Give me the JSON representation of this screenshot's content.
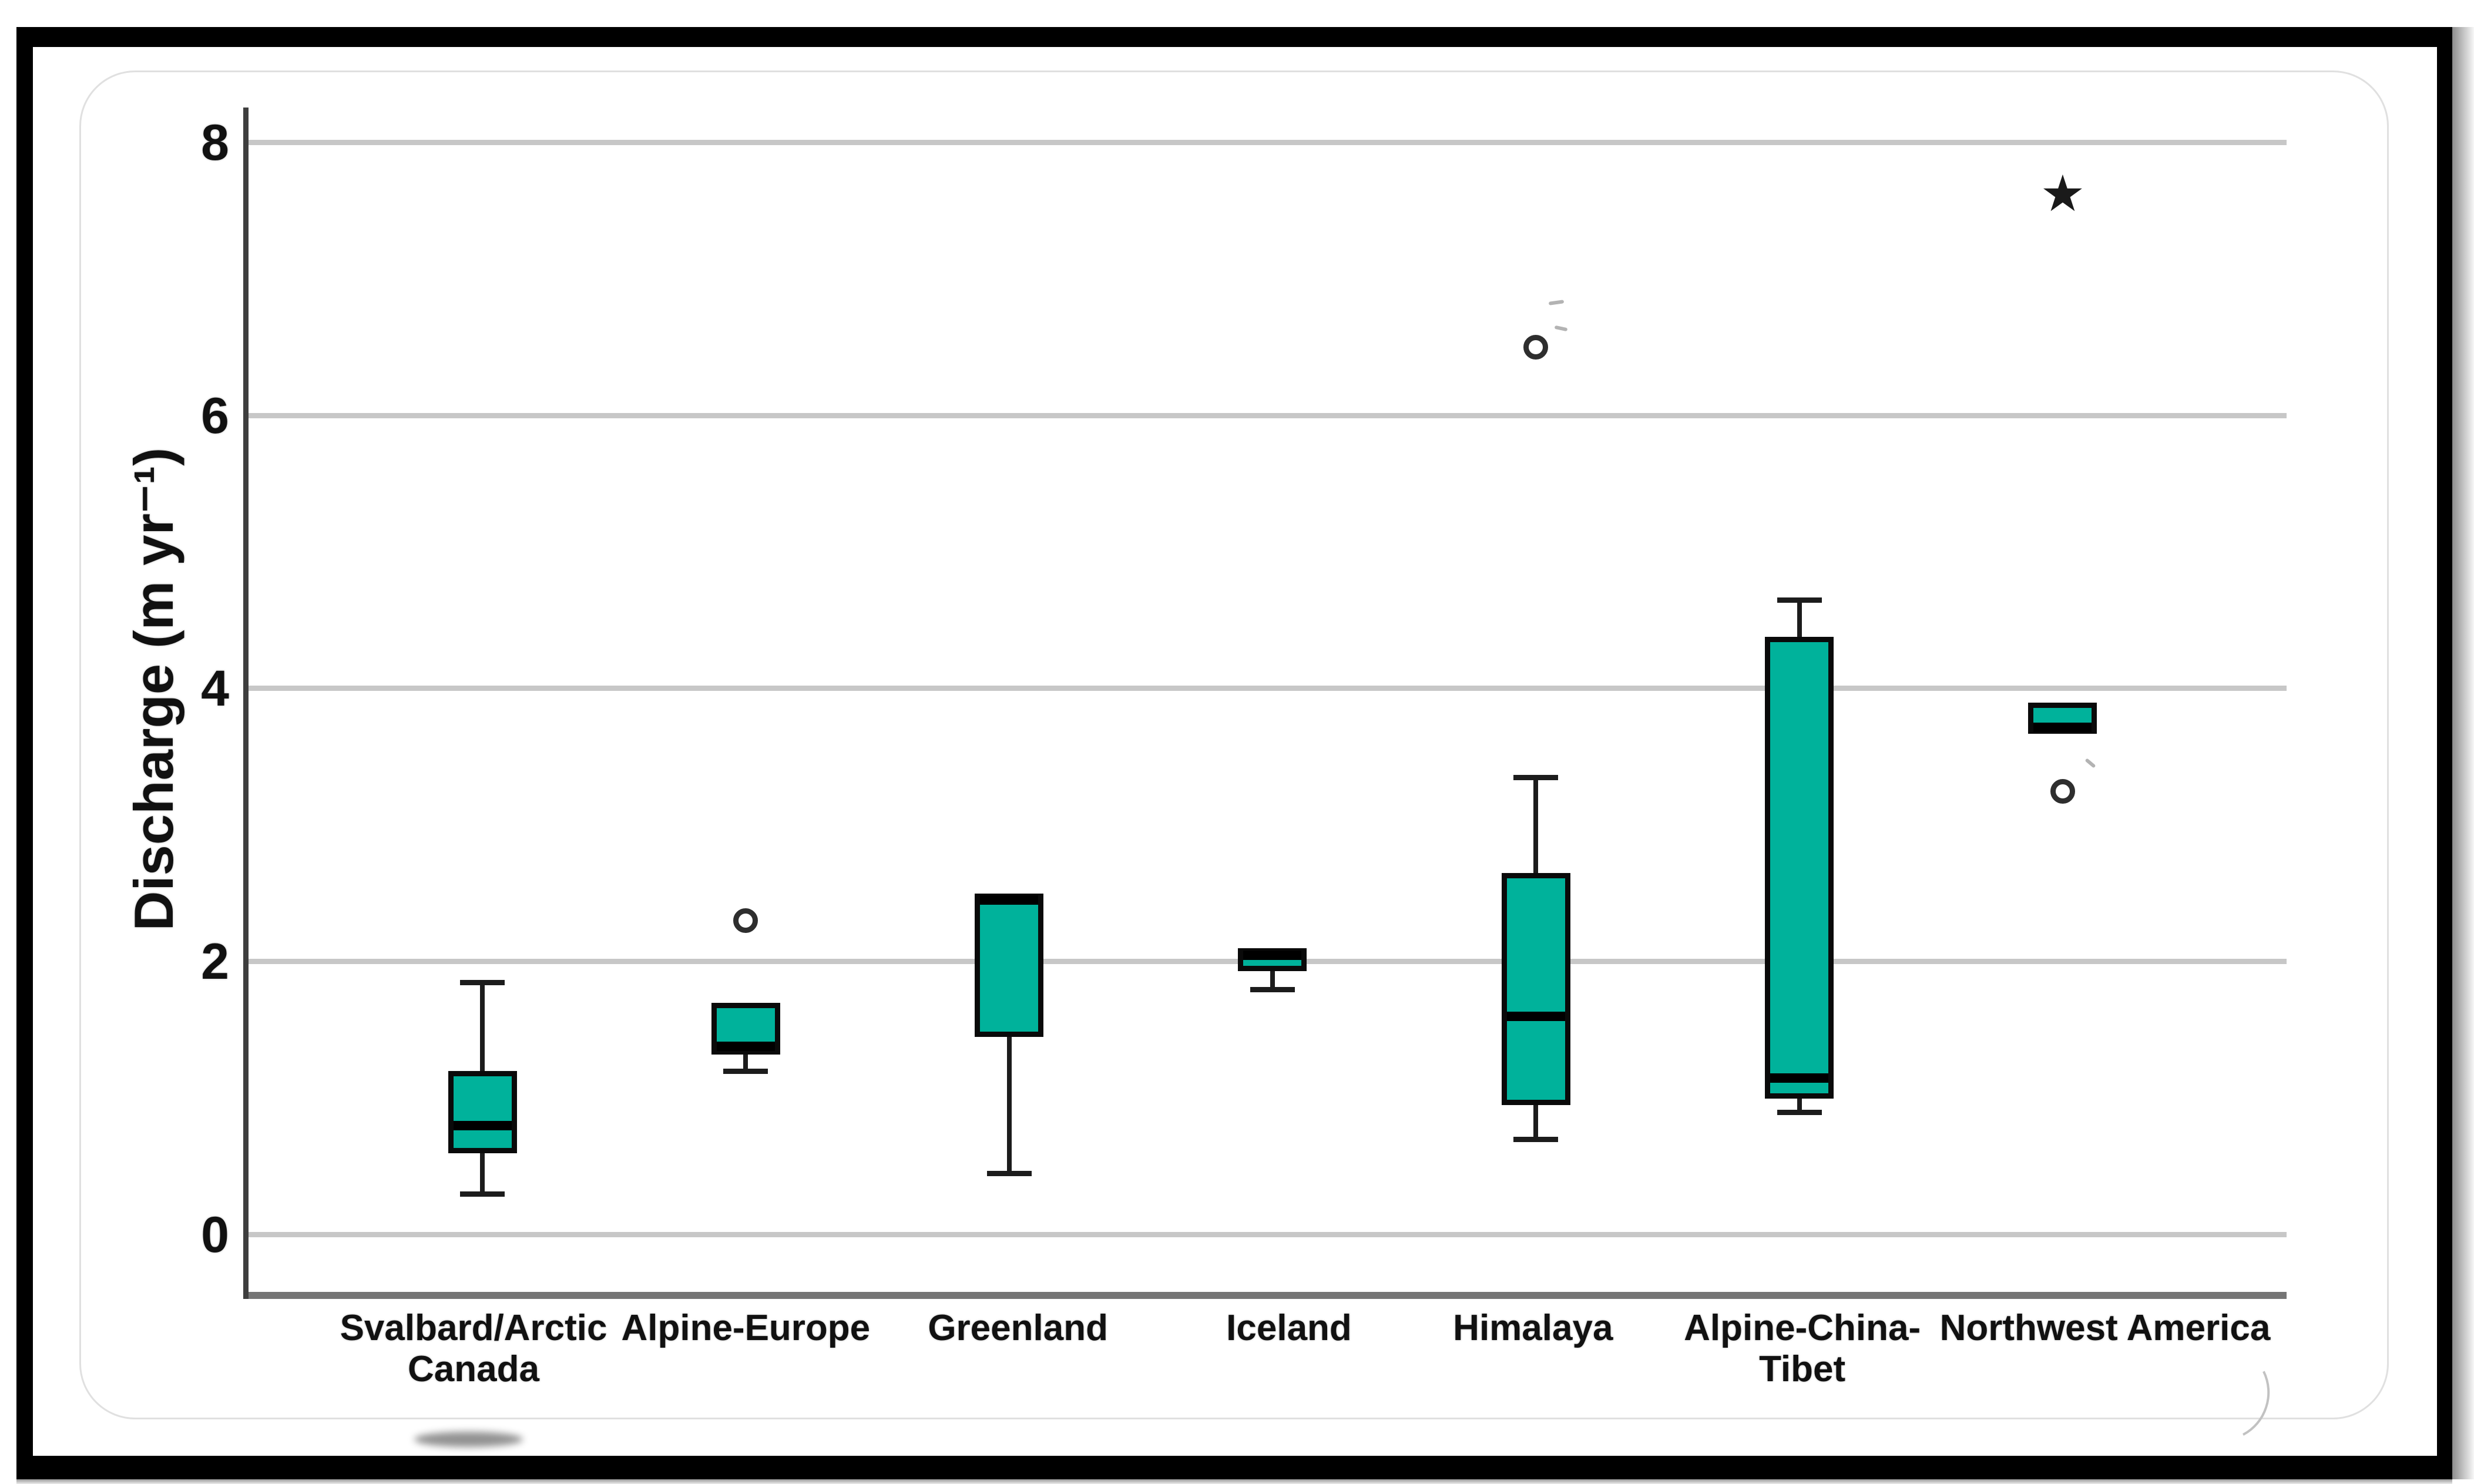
{
  "chart_data": {
    "type": "box",
    "title": "",
    "ylabel": "Discharge (m yr⁻¹)",
    "xlabel": "",
    "yticks": [
      0,
      2,
      4,
      6,
      8
    ],
    "ylim": [
      -0.42,
      8.26
    ],
    "grid": "horizontal-only",
    "legend": "none",
    "box_fill_color": "#00b29b",
    "box_border_color": "#0a0a0a",
    "outlier_symbol": "circle",
    "extreme_symbol": "★",
    "categories": [
      "Svalbard/Arctic Canada",
      "Alpine-Europe",
      "Greenland",
      "Iceland",
      "Himalaya",
      "Alpine-China-Tibet",
      "Northwest America"
    ],
    "series": [
      {
        "name": "Svalbard/Arctic Canada",
        "label_lines": [
          "Svalbard/Arctic",
          "Canada"
        ],
        "whisker_low": 0.3,
        "q1": 0.6,
        "median": 0.8,
        "q3": 1.2,
        "whisker_high": 1.85,
        "outliers": [],
        "extremes": []
      },
      {
        "name": "Alpine-Europe",
        "label_lines": [
          "Alpine-Europe"
        ],
        "whisker_low": 1.2,
        "q1": 1.32,
        "median": 1.38,
        "q3": 1.7,
        "whisker_high": 1.7,
        "outliers": [
          2.3
        ],
        "extremes": []
      },
      {
        "name": "Greenland",
        "label_lines": [
          "Greenland"
        ],
        "whisker_low": 0.45,
        "q1": 1.45,
        "median": 2.5,
        "q3": 2.5,
        "whisker_high": 2.5,
        "outliers": [],
        "extremes": []
      },
      {
        "name": "Iceland",
        "label_lines": [
          "Iceland"
        ],
        "whisker_low": 1.8,
        "q1": 1.93,
        "median": 2.05,
        "q3": 2.1,
        "whisker_high": 2.1,
        "outliers": [],
        "extremes": []
      },
      {
        "name": "Himalaya",
        "label_lines": [
          "Himalaya"
        ],
        "whisker_low": 0.7,
        "q1": 0.95,
        "median": 1.6,
        "q3": 2.65,
        "whisker_high": 3.35,
        "outliers": [
          6.5
        ],
        "extremes": []
      },
      {
        "name": "Alpine-China-Tibet",
        "label_lines": [
          "Alpine-China-",
          "Tibet"
        ],
        "whisker_low": 0.9,
        "q1": 1.0,
        "median": 1.15,
        "q3": 4.38,
        "whisker_high": 4.65,
        "outliers": [],
        "extremes": []
      },
      {
        "name": "Northwest America",
        "label_lines": [
          "Northwest America"
        ],
        "whisker_low": 3.67,
        "q1": 3.67,
        "median": 3.7,
        "q3": 3.9,
        "whisker_high": 3.9,
        "outliers": [
          3.25
        ],
        "extremes": [
          7.6
        ]
      }
    ]
  }
}
